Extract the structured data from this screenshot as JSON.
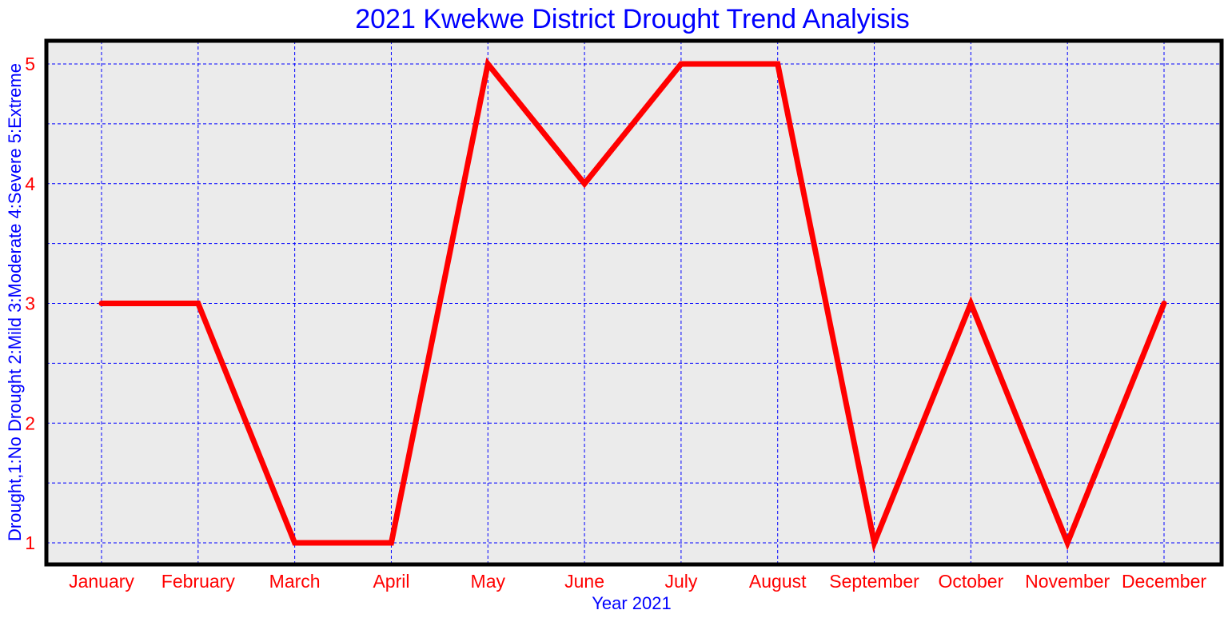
{
  "chart_data": {
    "type": "line",
    "title": "2021 Kwekwe District Drought Trend Analyisis",
    "xlabel": "Year 2021",
    "ylabel": "Drought,1:No Drought 2:Mild 3:Moderate 4:Severe 5:Extreme",
    "categories": [
      "January",
      "February",
      "March",
      "April",
      "May",
      "June",
      "July",
      "August",
      "September",
      "October",
      "November",
      "December"
    ],
    "series": [
      {
        "values": [
          3,
          3,
          1,
          1,
          5,
          4,
          5,
          5,
          1,
          3,
          1,
          3
        ],
        "color": "#ff0000"
      }
    ],
    "ylim": [
      0.8,
      5.2
    ],
    "yticks": [
      1,
      2,
      3,
      4,
      5
    ],
    "grid": true,
    "colors": {
      "title": "#0000ff",
      "axis_label": "#0000ff",
      "tick_label": "#ff0000",
      "grid": "#0000ff",
      "plot_background": "#ebebeb",
      "frame": "#000000"
    }
  }
}
